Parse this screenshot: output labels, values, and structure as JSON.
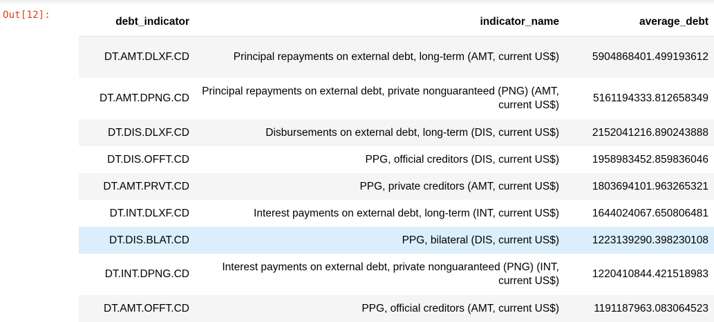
{
  "cell": {
    "prompt": "Out[12]:"
  },
  "table": {
    "columns": [
      "debt_indicator",
      "indicator_name",
      "average_debt"
    ],
    "rows": [
      {
        "debt_indicator": "DT.AMT.DLXF.CD",
        "indicator_name": "Principal repayments on external debt, long-term (AMT, current US$)",
        "average_debt": "5904868401.499193612"
      },
      {
        "debt_indicator": "DT.AMT.DPNG.CD",
        "indicator_name": "Principal repayments on external debt, private nonguaranteed (PNG) (AMT, current US$)",
        "average_debt": "5161194333.812658349"
      },
      {
        "debt_indicator": "DT.DIS.DLXF.CD",
        "indicator_name": "Disbursements on external debt, long-term (DIS, current US$)",
        "average_debt": "2152041216.890243888"
      },
      {
        "debt_indicator": "DT.DIS.OFFT.CD",
        "indicator_name": "PPG, official creditors (DIS, current US$)",
        "average_debt": "1958983452.859836046"
      },
      {
        "debt_indicator": "DT.AMT.PRVT.CD",
        "indicator_name": "PPG, private creditors (AMT, current US$)",
        "average_debt": "1803694101.963265321"
      },
      {
        "debt_indicator": "DT.INT.DLXF.CD",
        "indicator_name": "Interest payments on external debt, long-term (INT, current US$)",
        "average_debt": "1644024067.650806481"
      },
      {
        "debt_indicator": "DT.DIS.BLAT.CD",
        "indicator_name": "PPG, bilateral (DIS, current US$)",
        "average_debt": "1223139290.398230108"
      },
      {
        "debt_indicator": "DT.INT.DPNG.CD",
        "indicator_name": "Interest payments on external debt, private nonguaranteed (PNG) (INT, current US$)",
        "average_debt": "1220410844.421518983"
      },
      {
        "debt_indicator": "DT.AMT.OFFT.CD",
        "indicator_name": "PPG, official creditors (AMT, current US$)",
        "average_debt": "1191187963.083064523"
      }
    ]
  },
  "colors": {
    "prompt": "#d84315",
    "stripe": "#f5f5f5",
    "hover": "#dbeefb"
  }
}
